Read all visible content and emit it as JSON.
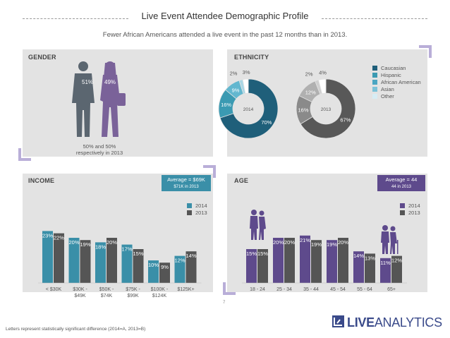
{
  "title": "Live Event Attendee Demographic Profile",
  "subtitle": "Fewer African Americans attended a live event in the past 12 months than in 2013.",
  "gender": {
    "header": "GENDER",
    "male_pct": "51%",
    "female_pct": "49%",
    "note_line1": "50% and 50%",
    "note_line2": "respectively in 2013"
  },
  "ethnicity": {
    "header": "ETHNICITY",
    "legend": [
      "Caucasian",
      "Hispanic",
      "African American",
      "Asian",
      "Other"
    ],
    "colors_2014": [
      "#1f5f7a",
      "#3b9ab2",
      "#62b7cf",
      "#a9d7e5",
      "#ffffff"
    ],
    "colors_2013": [
      "#585858",
      "#8a8a8a",
      "#b0b0b0",
      "#cfcfcf",
      "#ffffff"
    ],
    "legend_colors": [
      "#1f5f7a",
      "#3b9ab2",
      "#4aa6c2",
      "#7cc2d8",
      "#d7edf4"
    ]
  },
  "income": {
    "header": "INCOME",
    "average_label": "Average = $69K",
    "average_sub": "$71K in 2013",
    "legend_2014": "2014",
    "legend_2013": "2013",
    "color_2014": "#3a8fa8",
    "color_2013": "#555555"
  },
  "age": {
    "header": "AGE",
    "average_label": "Average = 44",
    "average_sub": "44 in 2013",
    "legend_2014": "2014",
    "legend_2013": "2013",
    "color_2014": "#5e4a8c",
    "color_2013": "#555555"
  },
  "page_number": "7",
  "footer": "Letters represent statistically significant difference (2014=A, 2013=B)",
  "brand": {
    "part1": "LIVE",
    "part2": "ANALYTICS"
  },
  "chart_data": [
    {
      "type": "pie",
      "title": "2014",
      "categories": [
        "Caucasian",
        "Hispanic",
        "African American",
        "Asian",
        "Other"
      ],
      "values": [
        70,
        16,
        9,
        2,
        3
      ],
      "labels": [
        "70%",
        "16%",
        "9%",
        "2%",
        "3%"
      ]
    },
    {
      "type": "pie",
      "title": "2013",
      "categories": [
        "Caucasian",
        "Hispanic",
        "African American",
        "Asian",
        "Other"
      ],
      "values": [
        67,
        16,
        12,
        2,
        4
      ],
      "labels": [
        "67%",
        "16%",
        "12%",
        "2%",
        "4%"
      ]
    },
    {
      "type": "bar",
      "title": "INCOME",
      "categories": [
        "< $30K",
        "$30K - $49K",
        "$50K - $74K",
        "$75K - $99K",
        "$100K - $124K",
        "$125K+"
      ],
      "category_lines": [
        [
          "< $30K"
        ],
        [
          "$30K -",
          "$49K"
        ],
        [
          "$50K -",
          "$74K"
        ],
        [
          "$75K -",
          "$99K"
        ],
        [
          "$100K -",
          "$124K"
        ],
        [
          "$125K+"
        ]
      ],
      "series": [
        {
          "name": "2014",
          "values": [
            23,
            20,
            18,
            17,
            10,
            12
          ]
        },
        {
          "name": "2013",
          "values": [
            22,
            19,
            20,
            15,
            9,
            14
          ]
        }
      ],
      "ylim": [
        0,
        30
      ]
    },
    {
      "type": "bar",
      "title": "AGE",
      "categories": [
        "18 - 24",
        "25 - 34",
        "35 - 44",
        "45 - 54",
        "55 - 64",
        "65+"
      ],
      "series": [
        {
          "name": "2014",
          "values": [
            15,
            20,
            21,
            19,
            14,
            11
          ]
        },
        {
          "name": "2013",
          "values": [
            15,
            20,
            19,
            20,
            13,
            12
          ]
        }
      ],
      "ylim": [
        0,
        30
      ]
    }
  ]
}
